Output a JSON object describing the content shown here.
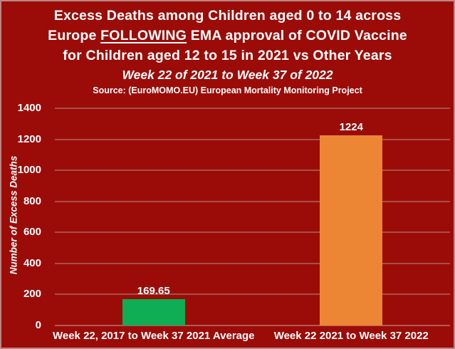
{
  "title": {
    "line1": "Excess Deaths among Children aged 0 to 14 across",
    "line2_prefix": "Europe ",
    "line2_underlined": "FOLLOWING",
    "line2_suffix": " EMA approval of COVID Vaccine",
    "line3": "for Children aged 12 to 15 in 2021 vs Other Years",
    "subtitle": "Week 22 of 2021 to Week 37 of 2022",
    "source": "Source: (EuroMOMO.EU) European Mortality Monitoring Project"
  },
  "chart_data": {
    "type": "bar",
    "title": "Excess Deaths among Children aged 0 to 14 across Europe FOLLOWING EMA approval of COVID Vaccine for Children aged 12 to 15 in 2021 vs Other Years",
    "subtitle": "Week 22 of 2021 to Week 37 of 2022",
    "source": "Source: (EuroMOMO.EU) European Mortality Monitoring Project",
    "xlabel": "",
    "ylabel": "Number of Excess Deaths",
    "ylim": [
      0,
      1400
    ],
    "yticks": [
      0,
      200,
      400,
      600,
      800,
      1000,
      1200,
      1400
    ],
    "grid": true,
    "legend": false,
    "categories": [
      "Week 22, 2017 to Week 37 2021 Average",
      "Week 22 2021 to Week 37 2022"
    ],
    "values": [
      169.65,
      1224
    ],
    "value_labels": [
      "169.65",
      "1224"
    ],
    "bar_colors": [
      "#0FAE54",
      "#ED8634"
    ]
  },
  "colors": {
    "background": "#9B0C08",
    "border": "#BA8683",
    "gridline": "#A94E48",
    "text": "#FFFFFF",
    "green_bar": "#0FAE54",
    "orange_bar": "#ED8634"
  }
}
